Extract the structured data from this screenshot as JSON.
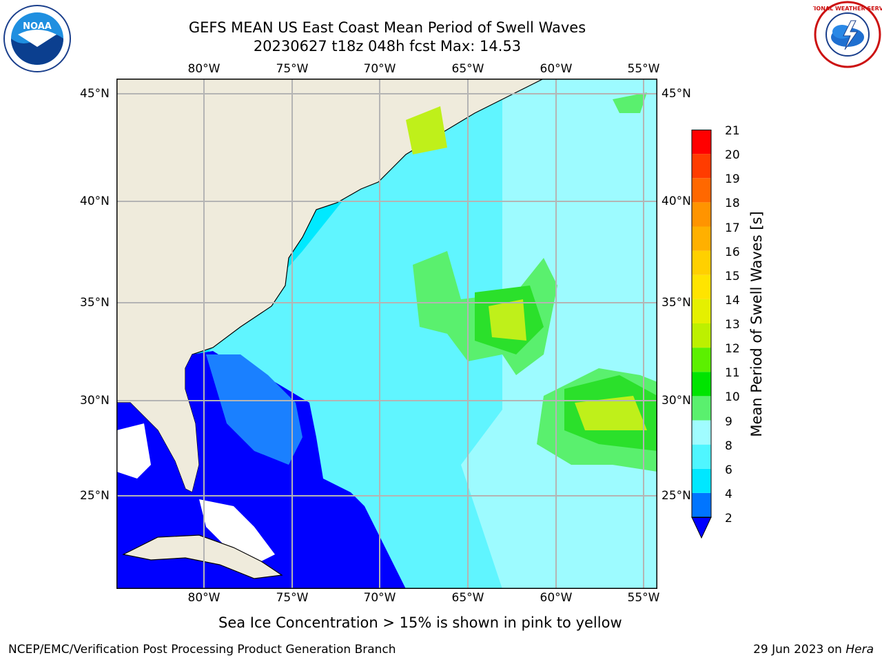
{
  "title": {
    "line1": "GEFS MEAN US East Coast Mean Period of Swell Waves",
    "line2": "20230627 t18z 048h fcst   Max: 14.53"
  },
  "logos": {
    "noaa_text": "NOAA",
    "nws_text": "NATIONAL WEATHER SERVICE"
  },
  "map": {
    "lon_labels": [
      "80°W",
      "75°W",
      "70°W",
      "65°W",
      "60°W",
      "55°W"
    ],
    "lat_labels": [
      "45°N",
      "40°N",
      "35°N",
      "30°N",
      "25°N"
    ],
    "colors": {
      "land": "#efebdc",
      "deep_blue": "#0000ff",
      "blue": "#1a80ff",
      "cyan": "#00e9ff",
      "light_cyan": "#60f5ff",
      "pale_cyan": "#9dfbff",
      "light_green": "#5af06e",
      "green": "#2be02b",
      "yellow_green": "#bff01a",
      "grid": "#b4b4b4"
    }
  },
  "colorbar": {
    "label": "Mean Period of Swell Waves [s]",
    "ticks": [
      "2",
      "4",
      "6",
      "8",
      "9",
      "10",
      "11",
      "12",
      "13",
      "14",
      "15",
      "16",
      "17",
      "18",
      "19",
      "20",
      "21"
    ],
    "colors": [
      "#0075ff",
      "#00e7ff",
      "#4ff6ff",
      "#a0fcff",
      "#5af06e",
      "#00e400",
      "#5cf000",
      "#bdf000",
      "#e5f000",
      "#ffe400",
      "#ffd000",
      "#ffb000",
      "#ff9400",
      "#ff6800",
      "#ff3c00",
      "#ff0000"
    ],
    "extend_color": "#0000ff"
  },
  "subcaption": "Sea Ice Concentration > 15% is shown in pink to yellow",
  "footer": {
    "left": "NCEP/EMC/Verification Post Processing Product Generation Branch",
    "right_prefix": "29 Jun 2023 on ",
    "right_host": "Hera"
  }
}
